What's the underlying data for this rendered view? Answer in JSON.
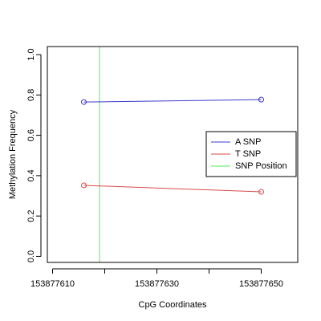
{
  "chart_data": {
    "type": "line",
    "title": "",
    "xlabel": "CpG Coordinates",
    "ylabel": "Methylation Frequency",
    "xlim": [
      153877609,
      153877657
    ],
    "ylim": [
      -0.03,
      1.04
    ],
    "x_ticks": [
      153877610,
      153877620,
      153877630,
      153877640,
      153877650
    ],
    "x_tick_labels": [
      "153877610",
      "",
      "153877630",
      "",
      "153877650"
    ],
    "y_ticks": [
      0.0,
      0.2,
      0.4,
      0.6,
      0.8,
      1.0
    ],
    "y_tick_labels": [
      "0.0",
      "0.2",
      "0.4",
      "0.6",
      "0.8",
      "1.0"
    ],
    "grid": false,
    "legend_position": "right",
    "series": [
      {
        "name": "A SNP",
        "color": "#3b3bcc",
        "x": [
          153877616,
          153877650
        ],
        "y": [
          0.765,
          0.777
        ]
      },
      {
        "name": "T SNP",
        "color": "#d94a4a",
        "x": [
          153877616,
          153877650
        ],
        "y": [
          0.352,
          0.32
        ]
      }
    ],
    "snp_position": {
      "name": "SNP Position",
      "color": "#55ee55",
      "x": 153877619
    }
  }
}
